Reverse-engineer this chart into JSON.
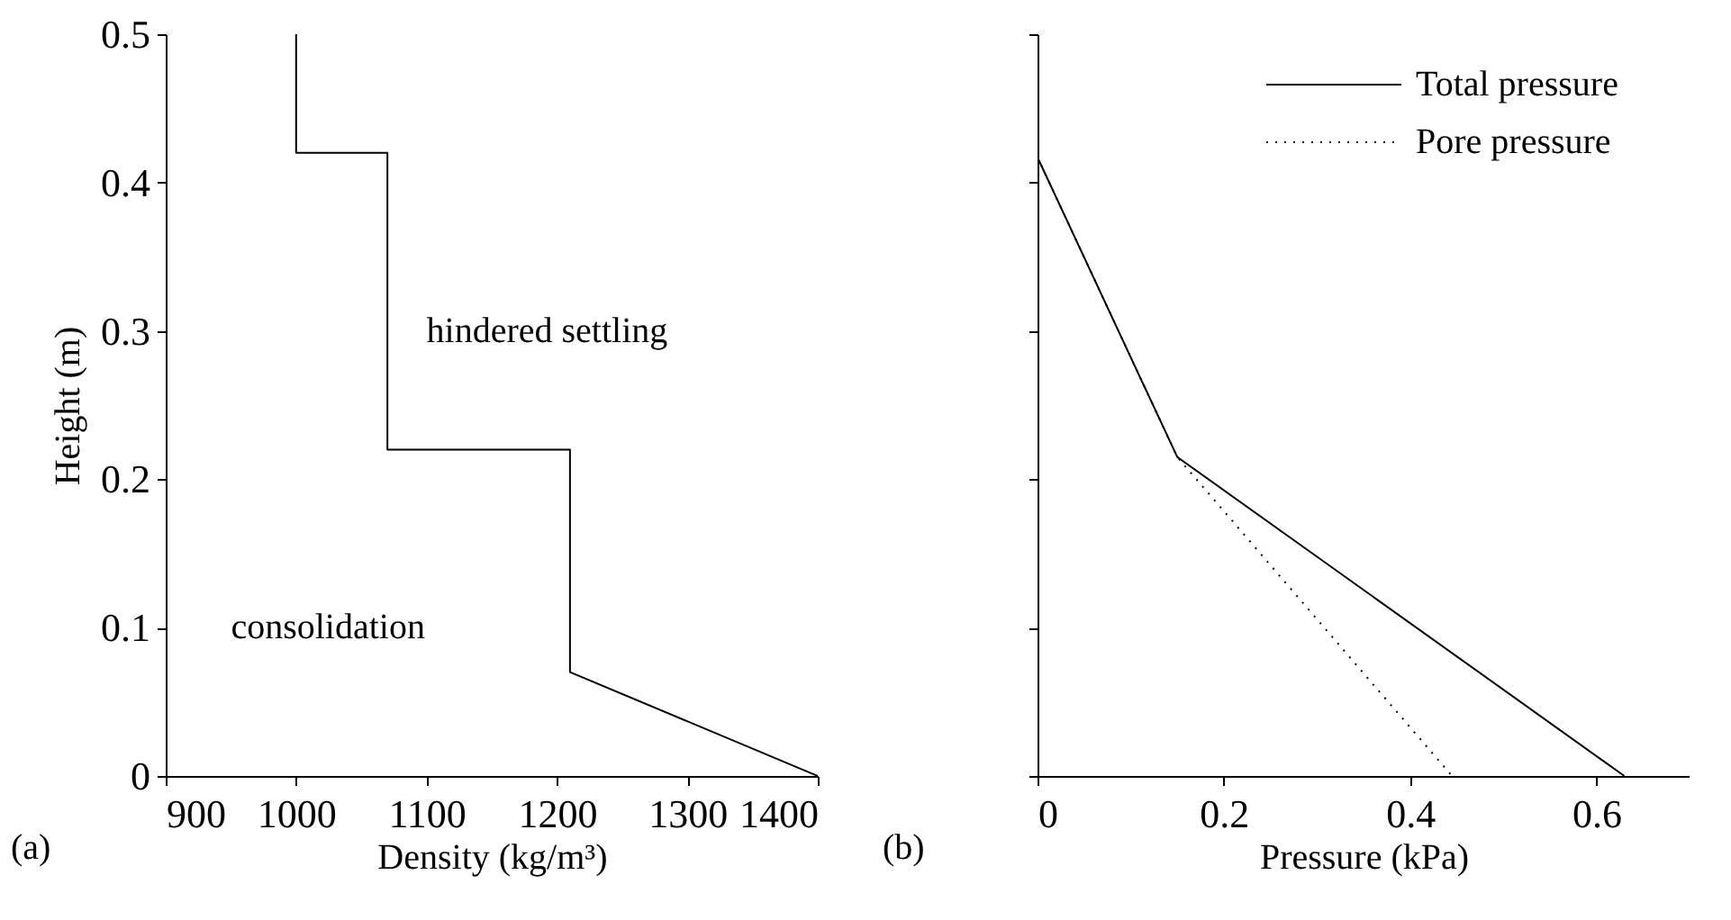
{
  "chart_data": [
    {
      "type": "line",
      "xlabel": "Density (kg/m³)",
      "ylabel": "Height (m)",
      "xlim": [
        900,
        1400
      ],
      "xticks": [
        900,
        1000,
        1100,
        1200,
        1300,
        1400
      ],
      "ylim": [
        0,
        0.5
      ],
      "yticks": [
        0,
        0.1,
        0.2,
        0.3,
        0.4,
        0.5
      ],
      "grid": false,
      "annotations": [
        "(a)",
        "hindered settling",
        "consolidation"
      ],
      "series": [
        {
          "color": "#000000",
          "line_style": "solid",
          "x": [
            1000,
            1000,
            1070,
            1070,
            1210,
            1210,
            1400
          ],
          "values": [
            0.5,
            0.42,
            0.42,
            0.22,
            0.22,
            0.07,
            0
          ]
        }
      ]
    },
    {
      "type": "line",
      "xlabel": "Pressure (kPa)",
      "xlim": [
        0,
        0.7
      ],
      "xticks": [
        0,
        0.2,
        0.4,
        0.6
      ],
      "ylim": [
        0,
        0.5
      ],
      "yticks": [
        0,
        0.1,
        0.2,
        0.3,
        0.4,
        0.5
      ],
      "tick_labels": "x",
      "grid": false,
      "legend": "top right",
      "annotations": [
        "(b)"
      ],
      "series": [
        {
          "name": "Total pressure",
          "color": "#000000",
          "line_style": "solid",
          "x": [
            0,
            0.15,
            0.63
          ],
          "values": [
            0.417,
            0.215,
            0
          ]
        },
        {
          "name": "Pore pressure",
          "color": "#000000",
          "line_style": "dotted",
          "x": [
            0,
            0.15,
            0.445
          ],
          "values": [
            0.417,
            0.215,
            0
          ]
        }
      ]
    }
  ]
}
